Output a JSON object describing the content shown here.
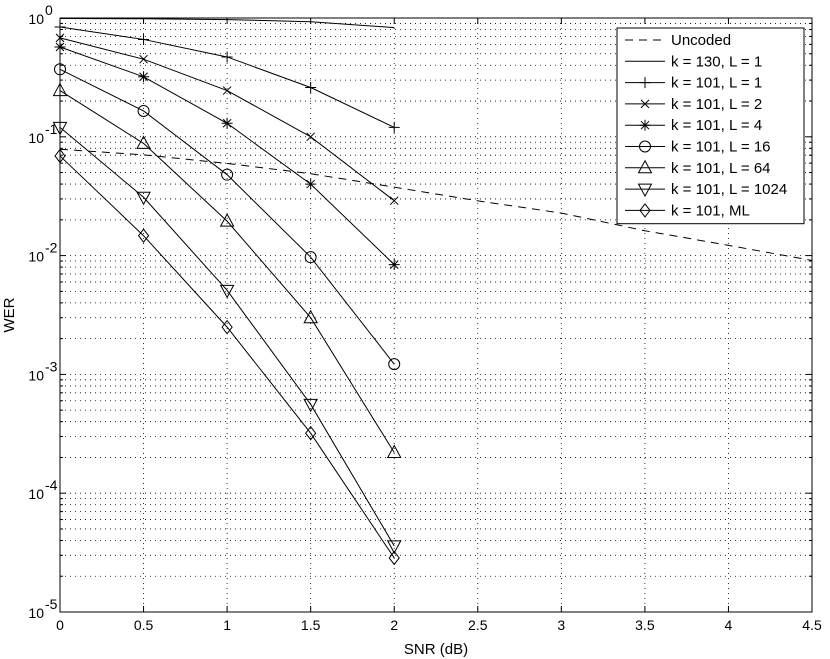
{
  "chart_data": {
    "type": "line",
    "title": "",
    "xlabel": "SNR (dB)",
    "ylabel": "WER",
    "yscale": "log",
    "xlim": [
      0,
      4.5
    ],
    "ylim": [
      1e-05,
      1
    ],
    "grid": true,
    "legend_position": "top-right",
    "x_ticks": [
      0,
      0.5,
      1,
      1.5,
      2,
      2.5,
      3,
      3.5,
      4,
      4.5
    ],
    "x_tick_labels": [
      "0",
      "0.5",
      "1",
      "1.5",
      "2",
      "2.5",
      "3",
      "3.5",
      "4",
      "4.5"
    ],
    "y_ticks": [
      {
        "value": 1,
        "base": "10",
        "exp": "0"
      },
      {
        "value": 0.1,
        "base": "10",
        "exp": "-1"
      },
      {
        "value": 0.01,
        "base": "10",
        "exp": "-2"
      },
      {
        "value": 0.001,
        "base": "10",
        "exp": "-3"
      },
      {
        "value": 0.0001,
        "base": "10",
        "exp": "-4"
      },
      {
        "value": 1e-05,
        "base": "10",
        "exp": "-5"
      }
    ],
    "series": [
      {
        "name": "Uncoded",
        "style": "dashed",
        "marker": "none",
        "x": [
          0,
          0.5,
          1,
          1.5,
          2,
          2.5,
          3,
          3.5,
          4,
          4.5
        ],
        "y": [
          0.0786,
          0.0705,
          0.0597,
          0.0489,
          0.0377,
          0.0289,
          0.0228,
          0.0162,
          0.0122,
          0.0091
        ]
      },
      {
        "name": "k = 130, L = 1",
        "style": "solid",
        "marker": "none",
        "x": [
          0,
          0.5,
          1,
          1.5,
          2
        ],
        "y": [
          0.99,
          0.985,
          0.97,
          0.93,
          0.83
        ]
      },
      {
        "name": "k = 101, L = 1",
        "style": "solid",
        "marker": "plus",
        "x": [
          0,
          0.5,
          1,
          1.5,
          2
        ],
        "y": [
          0.84,
          0.66,
          0.47,
          0.26,
          0.12
        ]
      },
      {
        "name": "k = 101, L = 2",
        "style": "solid",
        "marker": "x",
        "x": [
          0,
          0.5,
          1,
          1.5,
          2
        ],
        "y": [
          0.68,
          0.45,
          0.245,
          0.1,
          0.029
        ]
      },
      {
        "name": "k = 101, L = 4",
        "style": "solid",
        "marker": "star",
        "x": [
          0,
          0.5,
          1,
          1.5,
          2
        ],
        "y": [
          0.57,
          0.32,
          0.13,
          0.04,
          0.0084
        ]
      },
      {
        "name": "k = 101, L = 16",
        "style": "solid",
        "marker": "circle",
        "x": [
          0,
          0.5,
          1,
          1.5,
          2
        ],
        "y": [
          0.37,
          0.165,
          0.048,
          0.0097,
          0.00122
        ]
      },
      {
        "name": "k = 101, L = 64",
        "style": "solid",
        "marker": "triangle-up",
        "x": [
          0,
          0.5,
          1,
          1.5,
          2
        ],
        "y": [
          0.245,
          0.088,
          0.0195,
          0.003,
          0.00022
        ]
      },
      {
        "name": "k = 101, L = 1024",
        "style": "solid",
        "marker": "triangle-down",
        "x": [
          0,
          0.5,
          1,
          1.5,
          2
        ],
        "y": [
          0.12,
          0.031,
          0.0051,
          0.00056,
          3.6e-05
        ]
      },
      {
        "name": "k = 101, ML",
        "style": "solid",
        "marker": "diamond",
        "x": [
          0,
          0.5,
          1,
          1.5,
          2
        ],
        "y": [
          0.069,
          0.0147,
          0.0025,
          0.00032,
          2.85e-05
        ]
      }
    ]
  }
}
